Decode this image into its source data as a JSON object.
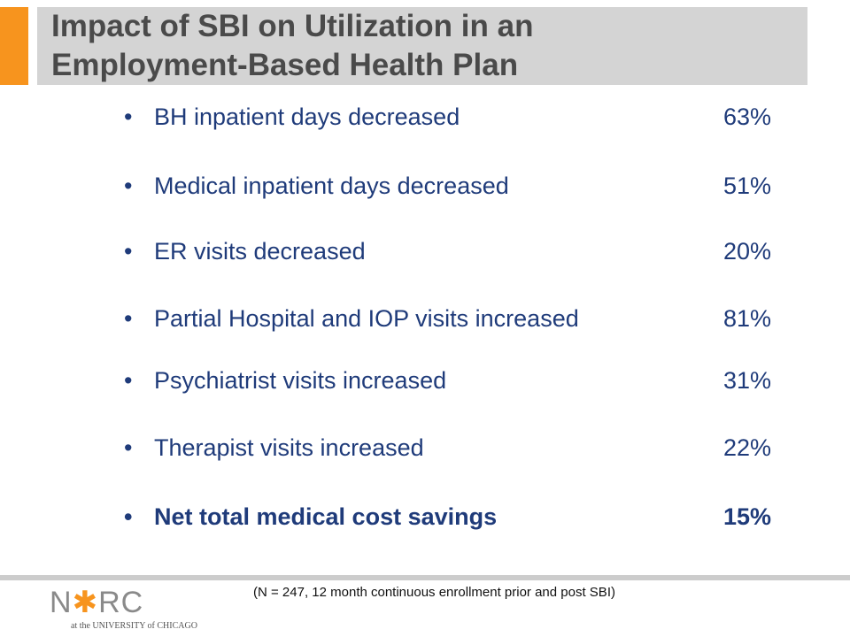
{
  "slide": {
    "title_line1": "Impact of SBI on Utilization in an",
    "title_line2": "Employment-Based Health Plan",
    "accent_color": "#f7941e",
    "title_band_color": "#d4d4d4",
    "text_color": "#1f3b7a"
  },
  "bullets": [
    {
      "marker": "•",
      "label": "BH inpatient days decreased",
      "value": "63%",
      "bold": false
    },
    {
      "marker": "•",
      "label": "Medical inpatient days decreased",
      "value": "51%",
      "bold": false
    },
    {
      "marker": "•",
      "label": "ER visits decreased",
      "value": "20%",
      "bold": false
    },
    {
      "marker": "•",
      "label": "Partial Hospital and IOP visits increased",
      "value": "81%",
      "bold": false
    },
    {
      "marker": "•",
      "label": "Psychiatrist visits increased",
      "value": "31%",
      "bold": false
    },
    {
      "marker": "•",
      "label": "Therapist visits increased",
      "value": "22%",
      "bold": false
    },
    {
      "marker": "•",
      "label": "Net total medical cost savings",
      "value": "15%",
      "bold": true
    }
  ],
  "footnote": "(N = 247, 12 month continuous enrollment prior and post SBI)",
  "logo": {
    "part1": "N",
    "star": "✱",
    "part2": "RC",
    "tagline": "at the UNIVERSITY of CHICAGO"
  }
}
